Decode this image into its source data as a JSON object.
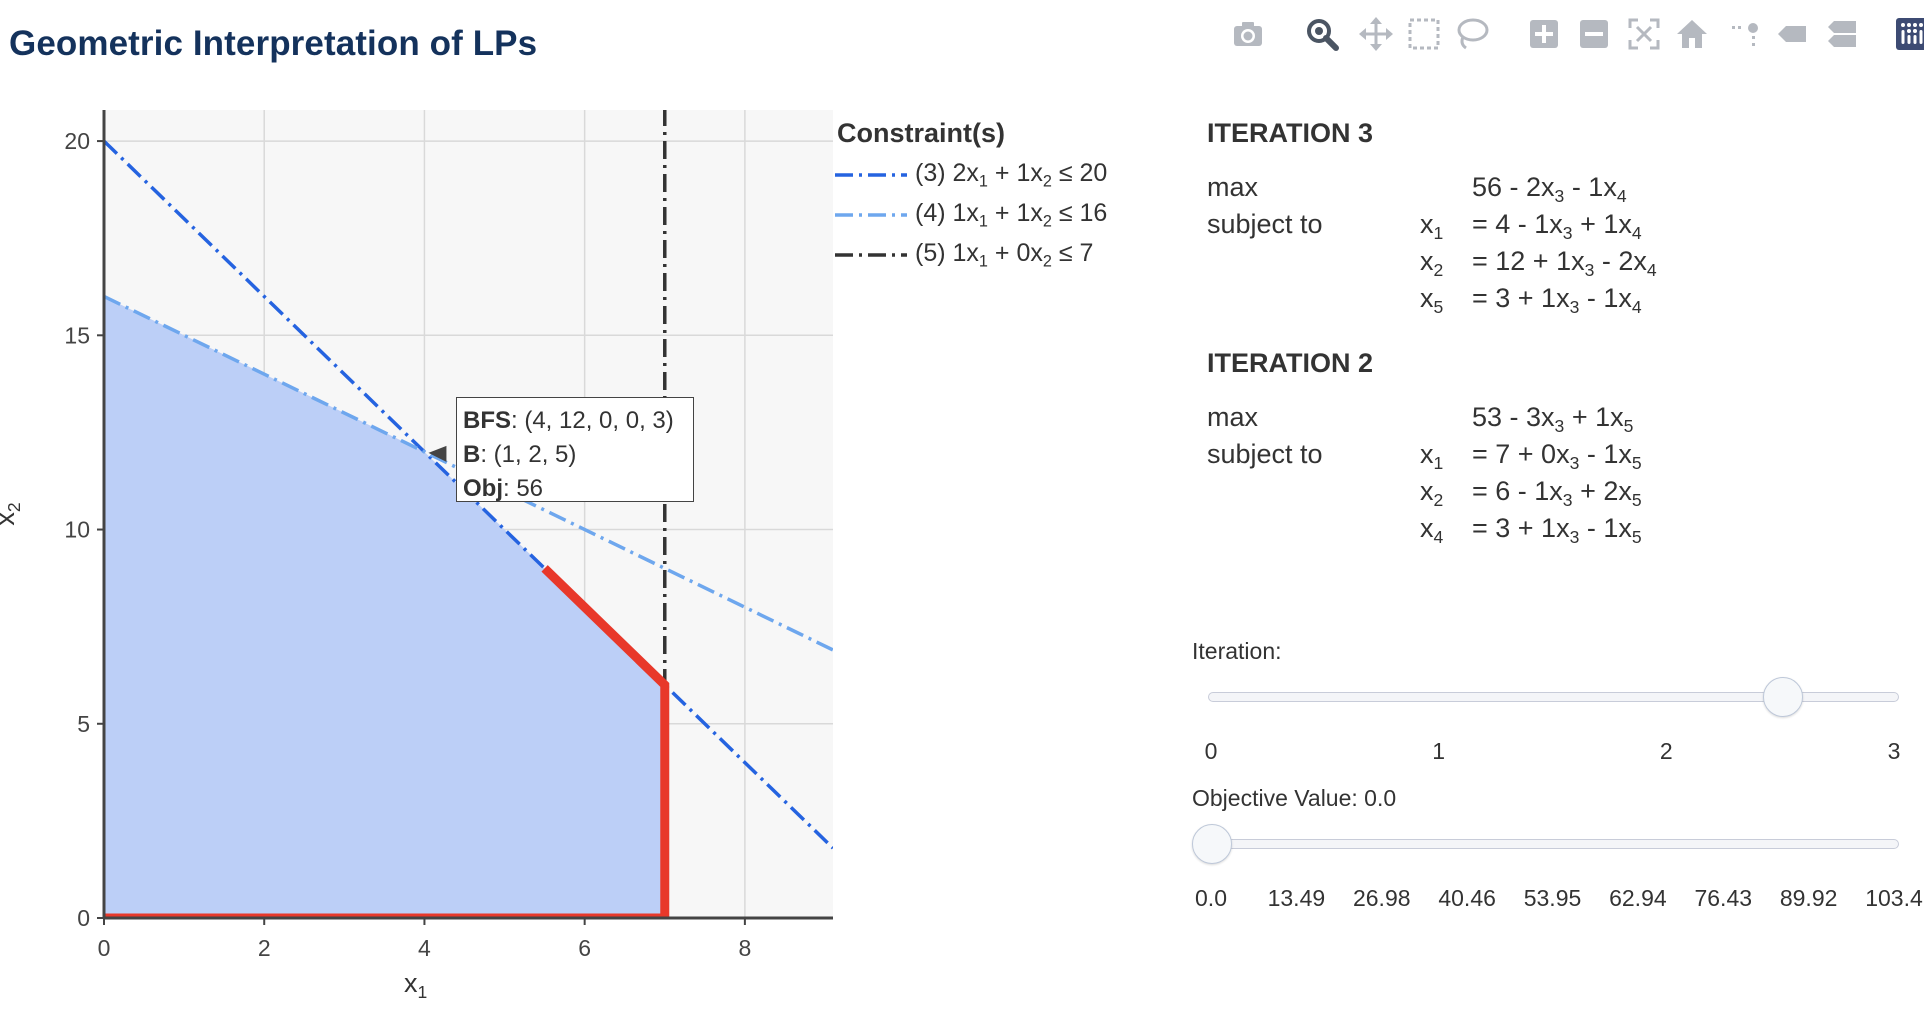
{
  "title": "Geometric Interpretation of LPs",
  "toolbar": [
    {
      "name": "camera-icon",
      "interactable": true,
      "active": false
    },
    {
      "name": "zoom-icon",
      "interactable": true,
      "active": true
    },
    {
      "name": "pan-icon",
      "interactable": true,
      "active": false
    },
    {
      "name": "box-select-icon",
      "interactable": true,
      "active": false
    },
    {
      "name": "lasso-select-icon",
      "interactable": true,
      "active": false
    },
    {
      "name": "zoom-in-icon",
      "interactable": true,
      "active": false
    },
    {
      "name": "zoom-out-icon",
      "interactable": true,
      "active": false
    },
    {
      "name": "autoscale-icon",
      "interactable": true,
      "active": false
    },
    {
      "name": "reset-axes-icon",
      "interactable": true,
      "active": false
    },
    {
      "name": "spikelines-icon",
      "interactable": true,
      "active": false
    },
    {
      "name": "hover-closest-icon",
      "interactable": true,
      "active": false
    },
    {
      "name": "hover-compare-icon",
      "interactable": true,
      "active": false
    },
    {
      "name": "plotly-logo-icon",
      "interactable": true,
      "active": false
    }
  ],
  "legend": {
    "title": "Constraint(s)",
    "items": [
      {
        "id": "3",
        "html": "(3) 2x<sub>1</sub> + 1x<sub>2</sub> ≤ 20",
        "color": "#2563e0",
        "dash": "dashdot"
      },
      {
        "id": "4",
        "html": "(4) 1x<sub>1</sub> + 1x<sub>2</sub> ≤ 16",
        "color": "#6ea7ee",
        "dash": "dashdot"
      },
      {
        "id": "5",
        "html": "(5) 1x<sub>1</sub> + 0x<sub>2</sub> ≤ 7",
        "color": "#333333",
        "dash": "dashdot"
      }
    ]
  },
  "chart_data": {
    "type": "line",
    "xlabel_html": "x<sub>1</sub>",
    "ylabel_html": "x<sub>2</sub>",
    "xlim": [
      0,
      9.1
    ],
    "ylim": [
      0,
      20.8
    ],
    "xticks": [
      0,
      2,
      4,
      6,
      8
    ],
    "yticks": [
      0,
      5,
      10,
      15,
      20
    ],
    "grid": true,
    "legend_position": "right",
    "constraints": [
      {
        "id": "3",
        "coef": [
          2,
          1
        ],
        "rhs": 20,
        "color": "#2563e0"
      },
      {
        "id": "4",
        "coef": [
          1,
          1
        ],
        "rhs": 16,
        "color": "#6ea7ee"
      },
      {
        "id": "5",
        "coef": [
          1,
          0
        ],
        "rhs": 7,
        "color": "#333333"
      }
    ],
    "feasible_region": [
      [
        0,
        0
      ],
      [
        0,
        16
      ],
      [
        4,
        12
      ],
      [
        7,
        6
      ],
      [
        7,
        0
      ]
    ],
    "feasible_color": "#bccff7",
    "path": [
      [
        0,
        0
      ],
      [
        7,
        0
      ],
      [
        7,
        6
      ],
      [
        5.5,
        9
      ]
    ],
    "path_color": "#e8382a",
    "tooltip": {
      "point": [
        4,
        12
      ],
      "bfs_label": "BFS",
      "bfs_value": ": (4, 12, 0, 0, 3)",
      "basis_label": "B",
      "basis_value": ": (1, 2, 5)",
      "obj_label": "Obj",
      "obj_value": ": 56"
    }
  },
  "iterations": [
    {
      "title": "ITERATION 3",
      "rows": [
        {
          "label": "max",
          "var": "",
          "expr": "56 - 2x<sub>3</sub> - 1x<sub>4</sub>"
        },
        {
          "label": "subject to",
          "var": "x<sub>1</sub>",
          "expr": "= 4 - 1x<sub>3</sub> + 1x<sub>4</sub>"
        },
        {
          "label": "",
          "var": "x<sub>2</sub>",
          "expr": "= 12 + 1x<sub>3</sub> - 2x<sub>4</sub>"
        },
        {
          "label": "",
          "var": "x<sub>5</sub>",
          "expr": "= 3 + 1x<sub>3</sub> - 1x<sub>4</sub>"
        }
      ]
    },
    {
      "title": "ITERATION 2",
      "rows": [
        {
          "label": "max",
          "var": "",
          "expr": "53 - 3x<sub>3</sub> + 1x<sub>5</sub>"
        },
        {
          "label": "subject to",
          "var": "x<sub>1</sub>",
          "expr": "= 7 + 0x<sub>3</sub> - 1x<sub>5</sub>"
        },
        {
          "label": "",
          "var": "x<sub>2</sub>",
          "expr": "= 6 - 1x<sub>3</sub> + 2x<sub>5</sub>"
        },
        {
          "label": "",
          "var": "x<sub>4</sub>",
          "expr": "= 3 + 1x<sub>3</sub> - 1x<sub>5</sub>"
        }
      ]
    }
  ],
  "iteration_slider": {
    "label": "Iteration:",
    "ticks": [
      "0",
      "1",
      "2",
      "3"
    ],
    "value": 2.5,
    "min": 0,
    "max": 3
  },
  "objective_slider": {
    "label": "Objective Value: 0.0",
    "ticks": [
      "0.0",
      "13.49",
      "26.98",
      "40.46",
      "53.95",
      "62.94",
      "76.43",
      "89.92",
      "103.4"
    ],
    "value_index": 0
  }
}
